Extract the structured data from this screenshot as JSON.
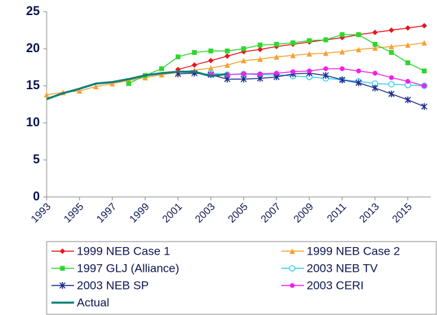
{
  "chart_data": {
    "type": "line",
    "x": [
      1993,
      1994,
      1995,
      1996,
      1997,
      1998,
      1999,
      2000,
      2001,
      2002,
      2003,
      2004,
      2005,
      2006,
      2007,
      2008,
      2009,
      2010,
      2011,
      2012,
      2013,
      2014,
      2015,
      2016
    ],
    "xlim": [
      1993,
      2016.4
    ],
    "xticks": [
      1993,
      1995,
      1997,
      1999,
      2001,
      2003,
      2005,
      2007,
      2009,
      2011,
      2013,
      2015
    ],
    "ylim": [
      0,
      25
    ],
    "yticks": [
      0,
      5,
      10,
      15,
      20,
      25
    ],
    "grid": false,
    "legend": "bottom",
    "series": [
      {
        "name": "1999 NEB Case 1",
        "color": "#e8141c",
        "marker": "diamond",
        "values": [
          null,
          null,
          null,
          null,
          null,
          null,
          null,
          null,
          17.2,
          17.8,
          18.4,
          19.0,
          19.6,
          19.9,
          20.3,
          20.6,
          20.9,
          21.2,
          21.5,
          21.9,
          22.2,
          22.5,
          22.8,
          23.1
        ]
      },
      {
        "name": "1999 NEB Case 2",
        "color": "#f7a030",
        "marker": "triangle",
        "values": [
          13.8,
          14.1,
          14.3,
          14.9,
          15.3,
          15.7,
          16.1,
          16.5,
          16.8,
          17.1,
          17.4,
          17.8,
          18.4,
          18.6,
          18.9,
          19.1,
          19.3,
          19.4,
          19.6,
          19.9,
          20.1,
          20.3,
          20.5,
          20.8
        ]
      },
      {
        "name": "1997 GLJ (Alliance)",
        "color": "#2ed62e",
        "marker": "square",
        "values": [
          null,
          null,
          null,
          null,
          null,
          15.3,
          16.4,
          17.3,
          18.9,
          19.5,
          19.7,
          19.7,
          20.0,
          20.5,
          20.6,
          20.8,
          21.1,
          21.2,
          21.9,
          21.9,
          20.6,
          19.5,
          18.1,
          17.0
        ]
      },
      {
        "name": "2003 NEB TV",
        "color": "#33ccf0",
        "marker": "circle-open",
        "values": [
          null,
          null,
          null,
          null,
          null,
          null,
          null,
          null,
          null,
          null,
          16.7,
          16.5,
          16.6,
          16.5,
          16.5,
          16.3,
          16.2,
          16.0,
          15.8,
          15.6,
          15.3,
          15.2,
          15.1,
          15.0
        ]
      },
      {
        "name": "2003 NEB SP",
        "color": "#1b2a8c",
        "marker": "star",
        "values": [
          null,
          null,
          null,
          null,
          null,
          null,
          null,
          null,
          16.6,
          16.7,
          16.5,
          15.9,
          15.9,
          16.0,
          16.2,
          16.6,
          16.7,
          16.4,
          15.8,
          15.4,
          14.7,
          13.9,
          13.1,
          12.2
        ]
      },
      {
        "name": "2003 CERI",
        "color": "#f020e8",
        "marker": "circle",
        "values": [
          null,
          null,
          null,
          null,
          null,
          null,
          null,
          null,
          null,
          null,
          16.5,
          16.5,
          16.6,
          16.6,
          16.7,
          16.9,
          17.0,
          17.3,
          17.3,
          17.0,
          16.7,
          16.1,
          15.6,
          15.0
        ]
      },
      {
        "name": "Actual",
        "color": "#0a7f78",
        "marker": "none",
        "width": 3,
        "values": [
          13.2,
          14.0,
          14.6,
          15.3,
          15.5,
          15.9,
          16.4,
          16.7,
          16.9,
          16.9,
          16.3,
          16.6,
          null,
          null,
          null,
          null,
          null,
          null,
          null,
          null,
          null,
          null,
          null,
          null
        ]
      }
    ]
  }
}
